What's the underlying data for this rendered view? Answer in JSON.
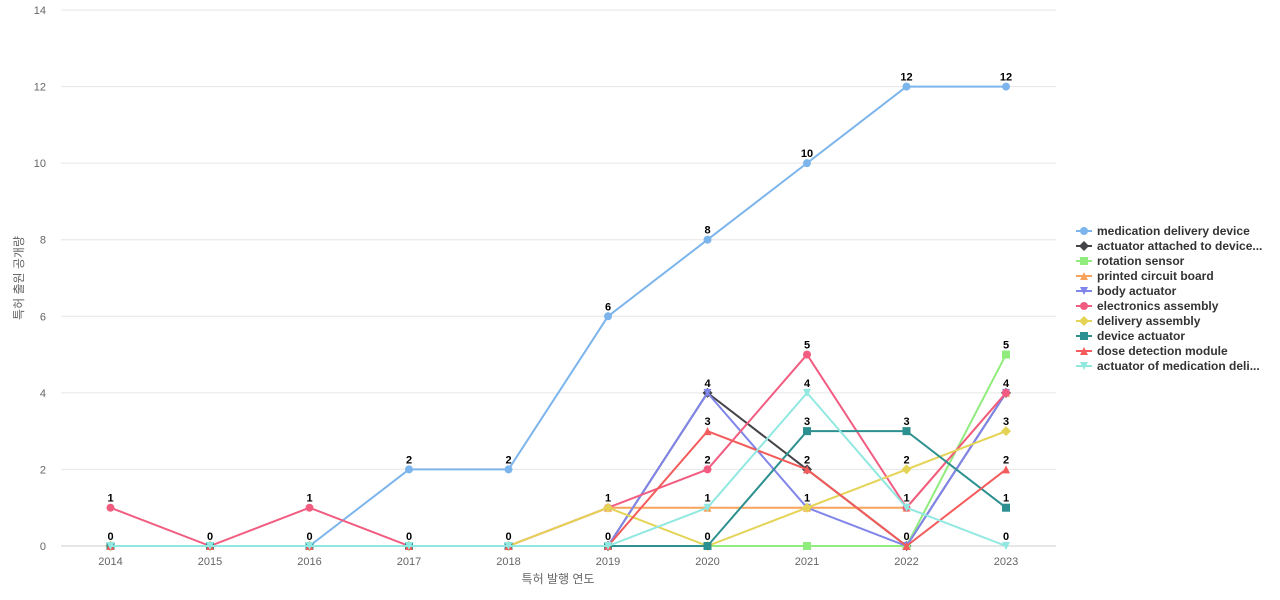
{
  "chart_data": {
    "type": "line",
    "xlabel": "특허 발행 연도",
    "ylabel": "특허 출원 공개량",
    "ylim": [
      0,
      14
    ],
    "yticks": [
      0,
      2,
      4,
      6,
      8,
      10,
      12,
      14
    ],
    "categories": [
      "2014",
      "2015",
      "2016",
      "2017",
      "2018",
      "2019",
      "2020",
      "2021",
      "2022",
      "2023"
    ],
    "legend_position": "right",
    "series": [
      {
        "name": "medication delivery device",
        "color": "#7cb5ec",
        "marker": "circle",
        "values": [
          0,
          0,
          0,
          2,
          2,
          6,
          8,
          10,
          12,
          12
        ]
      },
      {
        "name": "actuator attached to device...",
        "color": "#434348",
        "marker": "diamond",
        "values": [
          0,
          0,
          0,
          0,
          0,
          0,
          4,
          2,
          0,
          4
        ]
      },
      {
        "name": "rotation sensor",
        "color": "#90ed7d",
        "marker": "square",
        "values": [
          0,
          0,
          0,
          0,
          0,
          0,
          0,
          0,
          0,
          5
        ]
      },
      {
        "name": "printed circuit board",
        "color": "#f7a35c",
        "marker": "triangle",
        "values": [
          0,
          0,
          0,
          0,
          0,
          1,
          1,
          1,
          1,
          4
        ]
      },
      {
        "name": "body actuator",
        "color": "#8085e9",
        "marker": "triangle-down",
        "values": [
          0,
          0,
          0,
          0,
          0,
          0,
          4,
          1,
          0,
          4
        ]
      },
      {
        "name": "electronics assembly",
        "color": "#f15c80",
        "marker": "circle",
        "values": [
          1,
          0,
          1,
          0,
          0,
          1,
          2,
          5,
          1,
          4
        ]
      },
      {
        "name": "delivery assembly",
        "color": "#e4d354",
        "marker": "diamond",
        "values": [
          0,
          0,
          0,
          0,
          0,
          1,
          0,
          1,
          2,
          3
        ]
      },
      {
        "name": "device actuator",
        "color": "#2b908f",
        "marker": "square",
        "values": [
          0,
          0,
          0,
          0,
          0,
          0,
          0,
          3,
          3,
          1
        ]
      },
      {
        "name": "dose detection module",
        "color": "#f45b5b",
        "marker": "triangle",
        "values": [
          0,
          0,
          0,
          0,
          0,
          0,
          3,
          2,
          0,
          2
        ]
      },
      {
        "name": "actuator of medication deli...",
        "color": "#91e8e1",
        "marker": "triangle-down",
        "values": [
          0,
          0,
          0,
          0,
          0,
          0,
          1,
          4,
          1,
          0
        ]
      }
    ],
    "data_labels": [
      {
        "x": "2014",
        "value": "1",
        "series": "electronics assembly"
      },
      {
        "x": "2014",
        "value": "0",
        "series": "medication delivery device"
      },
      {
        "x": "2015",
        "value": "0",
        "series": "medication delivery device"
      },
      {
        "x": "2016",
        "value": "1",
        "series": "electronics assembly"
      },
      {
        "x": "2016",
        "value": "0",
        "series": "medication delivery device"
      },
      {
        "x": "2017",
        "value": "2",
        "series": "medication delivery device"
      },
      {
        "x": "2017",
        "value": "0",
        "series": "electronics assembly"
      },
      {
        "x": "2018",
        "value": "2",
        "series": "medication delivery device"
      },
      {
        "x": "2018",
        "value": "0",
        "series": "delivery assembly"
      },
      {
        "x": "2019",
        "value": "6",
        "series": "medication delivery device"
      },
      {
        "x": "2019",
        "value": "1",
        "series": "delivery assembly"
      },
      {
        "x": "2019",
        "value": "0",
        "series": "device actuator"
      },
      {
        "x": "2020",
        "value": "8",
        "series": "medication delivery device"
      },
      {
        "x": "2020",
        "value": "4",
        "series": "actuator attached to device..."
      },
      {
        "x": "2020",
        "value": "3",
        "series": "dose detection module"
      },
      {
        "x": "2020",
        "value": "2",
        "series": "electronics assembly"
      },
      {
        "x": "2020",
        "value": "1",
        "series": "actuator of medication deli..."
      },
      {
        "x": "2020",
        "value": "0",
        "series": "device actuator"
      },
      {
        "x": "2021",
        "value": "10",
        "series": "medication delivery device"
      },
      {
        "x": "2021",
        "value": "5",
        "series": "electronics assembly"
      },
      {
        "x": "2021",
        "value": "4",
        "series": "actuator of medication deli..."
      },
      {
        "x": "2021",
        "value": "3",
        "series": "device actuator"
      },
      {
        "x": "2021",
        "value": "2",
        "series": "dose detection module"
      },
      {
        "x": "2021",
        "value": "1",
        "series": "delivery assembly"
      },
      {
        "x": "2022",
        "value": "12",
        "series": "medication delivery device"
      },
      {
        "x": "2022",
        "value": "3",
        "series": "device actuator"
      },
      {
        "x": "2022",
        "value": "2",
        "series": "delivery assembly"
      },
      {
        "x": "2022",
        "value": "1",
        "series": "electronics assembly"
      },
      {
        "x": "2022",
        "value": "0",
        "series": "dose detection module"
      },
      {
        "x": "2023",
        "value": "12",
        "series": "medication delivery device"
      },
      {
        "x": "2023",
        "value": "5",
        "series": "rotation sensor"
      },
      {
        "x": "2023",
        "value": "4",
        "series": "electronics assembly"
      },
      {
        "x": "2023",
        "value": "3",
        "series": "delivery assembly"
      },
      {
        "x": "2023",
        "value": "2",
        "series": "dose detection module"
      },
      {
        "x": "2023",
        "value": "1",
        "series": "device actuator"
      },
      {
        "x": "2023",
        "value": "0",
        "series": "actuator of medication deli..."
      }
    ]
  }
}
